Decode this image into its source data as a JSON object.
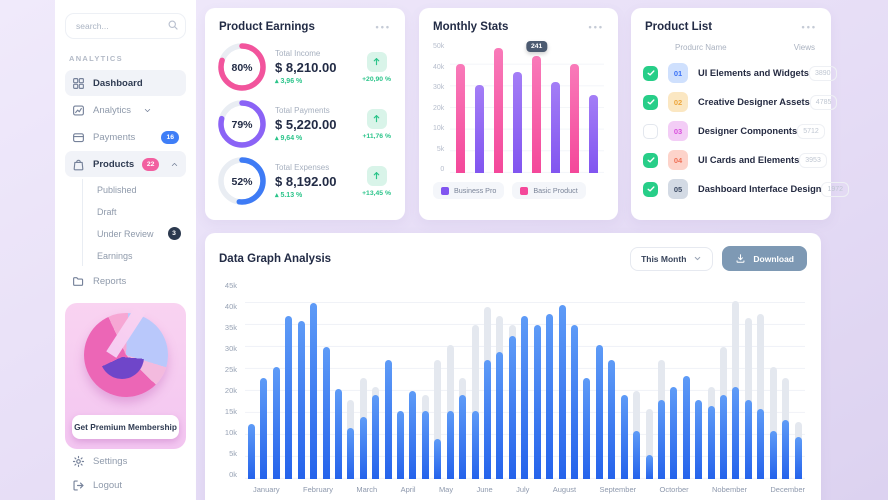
{
  "sidebar": {
    "search_placeholder": "search...",
    "section_label": "ANALYTICS",
    "nav": [
      {
        "label": "Dashboard",
        "icon": "dashboard-icon",
        "active": true
      },
      {
        "label": "Analytics",
        "icon": "analytics-icon",
        "chevron": "down"
      },
      {
        "label": "Payments",
        "icon": "payments-icon",
        "badge": "16",
        "badge_style": "blue"
      },
      {
        "label": "Products",
        "icon": "products-icon",
        "badge": "22",
        "badge_style": "pink",
        "chevron": "up",
        "active": true
      }
    ],
    "products_children": [
      {
        "label": "Published"
      },
      {
        "label": "Draft"
      },
      {
        "label": "Under Review",
        "badge": "3",
        "badge_style": "dark"
      },
      {
        "label": "Earnings"
      }
    ],
    "nav_after": [
      {
        "label": "Reports",
        "icon": "reports-icon"
      }
    ],
    "premium": {
      "button_label": "Get Premium Membership"
    },
    "footer_nav": [
      {
        "label": "Settings",
        "icon": "settings-icon"
      },
      {
        "label": "Logout",
        "icon": "logout-icon"
      }
    ]
  },
  "product_earnings": {
    "title": "Product Earnings",
    "items": [
      {
        "percent": "80%",
        "pct": 80,
        "color": "#f2549c",
        "label": "Total Income",
        "amount": "$ 8,210.00",
        "delta": "3,96 %",
        "change": "+20,90 %"
      },
      {
        "percent": "79%",
        "pct": 79,
        "color": "#8b63f6",
        "label": "Total Payments",
        "amount": "$ 5,220.00",
        "delta": "9,64 %",
        "change": "+11,76 %"
      },
      {
        "percent": "52%",
        "pct": 52,
        "color": "#3e7bf5",
        "label": "Total Expenses",
        "amount": "$ 8,192.00",
        "delta": "5.13 %",
        "change": "+13,45 %"
      }
    ]
  },
  "monthly_stats": {
    "title": "Monthly Stats"
  },
  "product_list": {
    "title": "Product List",
    "columns": [
      "Produrc Name",
      "Views"
    ],
    "rows": [
      {
        "checked": true,
        "num": "01",
        "name": "UI Elements and Widgets",
        "views": "3890",
        "badge_bg": "#cfe0fd",
        "badge_fg": "#3b72f6"
      },
      {
        "checked": true,
        "num": "02",
        "name": "Creative Designer Assets",
        "views": "4785",
        "badge_bg": "#fbe7c2",
        "badge_fg": "#eda63c"
      },
      {
        "checked": false,
        "num": "03",
        "name": "Designer Components",
        "views": "5712",
        "badge_bg": "#f3cdf6",
        "badge_fg": "#d950dd"
      },
      {
        "checked": true,
        "num": "04",
        "name": "UI Cards and Elements",
        "views": "3953",
        "badge_bg": "#fdd3ca",
        "badge_fg": "#ef7258"
      },
      {
        "checked": true,
        "num": "05",
        "name": "Dashboard Interface Design",
        "views": "1972",
        "badge_bg": "#d3dae4",
        "badge_fg": "#3c4a63"
      }
    ]
  },
  "data_graph": {
    "title": "Data Graph Analysis",
    "period_label": "This Month",
    "download_label": "Download"
  },
  "chart_data": [
    {
      "id": "monthly-stats-chart",
      "type": "bar",
      "title": "Monthly Stats",
      "ylim": [
        0,
        50000
      ],
      "yticks": [
        "50k",
        "40k",
        "30k",
        "20k",
        "10k",
        "5k",
        "0"
      ],
      "grid": true,
      "legend_position": "bottom",
      "legend": [
        {
          "label": "Business Pro",
          "color": "#8155f0"
        },
        {
          "label": "Basic Product",
          "color": "#f4489a"
        }
      ],
      "bars": [
        {
          "series": "Basic Product",
          "value": 42000
        },
        {
          "series": "Business Pro",
          "value": 34000
        },
        {
          "series": "Basic Product",
          "value": 48000
        },
        {
          "series": "Business Pro",
          "value": 39000
        },
        {
          "series": "Basic Product",
          "value": 45000,
          "tooltip": "241"
        },
        {
          "series": "Business Pro",
          "value": 35000
        },
        {
          "series": "Basic Product",
          "value": 42000
        },
        {
          "series": "Business Pro",
          "value": 30000
        }
      ]
    },
    {
      "id": "data-graph-analysis-chart",
      "type": "bar",
      "title": "Data Graph Analysis",
      "ylim": [
        0,
        45000
      ],
      "yticks": [
        "45k",
        "40k",
        "35k",
        "30k",
        "25k",
        "20k",
        "15k",
        "10k",
        "5k",
        "0k"
      ],
      "grid": true,
      "categories": [
        "January",
        "February",
        "March",
        "April",
        "May",
        "June",
        "July",
        "August",
        "September",
        "Octorber",
        "Nobember",
        "December"
      ],
      "series_legend": [
        {
          "name": "value",
          "color": "#2563eb"
        },
        {
          "name": "total",
          "color": "#e4e8ef"
        }
      ],
      "bars_value_total": [
        [
          12500,
          12500
        ],
        [
          23000,
          23000
        ],
        [
          25500,
          25500
        ],
        [
          37000,
          37000
        ],
        [
          36000,
          36000
        ],
        [
          40000,
          40000
        ],
        [
          30000,
          30000
        ],
        [
          20500,
          20500
        ],
        [
          11500,
          18000
        ],
        [
          14000,
          23000
        ],
        [
          19000,
          21000
        ],
        [
          27000,
          27000
        ],
        [
          15500,
          15500
        ],
        [
          20000,
          20000
        ],
        [
          15500,
          19000
        ],
        [
          9000,
          27000
        ],
        [
          15500,
          30500
        ],
        [
          19000,
          23000
        ],
        [
          15500,
          35000
        ],
        [
          27000,
          39000
        ],
        [
          29000,
          37000
        ],
        [
          32500,
          35000
        ],
        [
          37000,
          37000
        ],
        [
          35000,
          35000
        ],
        [
          37500,
          37500
        ],
        [
          39500,
          39500
        ],
        [
          35000,
          35000
        ],
        [
          23000,
          23000
        ],
        [
          30500,
          30500
        ],
        [
          27000,
          27000
        ],
        [
          19000,
          19000
        ],
        [
          11000,
          20000
        ],
        [
          5500,
          16000
        ],
        [
          18000,
          27000
        ],
        [
          21000,
          21000
        ],
        [
          23500,
          23500
        ],
        [
          18000,
          18000
        ],
        [
          16500,
          21000
        ],
        [
          19000,
          30000
        ],
        [
          21000,
          40500
        ],
        [
          18000,
          36500
        ],
        [
          16000,
          37500
        ],
        [
          11000,
          25500
        ],
        [
          13500,
          23000
        ],
        [
          9500,
          13000
        ]
      ]
    }
  ]
}
